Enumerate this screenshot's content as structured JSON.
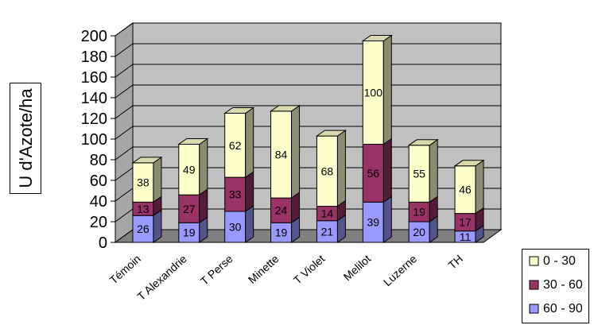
{
  "chart_data": {
    "type": "bar",
    "stacked": true,
    "style": "3d-column",
    "ylabel": "U d'Azote/ha",
    "xlabel": "",
    "ylim": [
      0,
      200
    ],
    "yticks": [
      0,
      20,
      40,
      60,
      80,
      100,
      120,
      140,
      160,
      180,
      200
    ],
    "grid": true,
    "legend_position": "bottom-right",
    "categories": [
      "Témoin",
      "T Alexandrie",
      "T Perse",
      "Minette",
      "T Violet",
      "Melilot",
      "Luzerne",
      "TH"
    ],
    "series": [
      {
        "name": "60 - 90",
        "values": [
          26,
          19,
          30,
          19,
          21,
          39,
          20,
          11
        ],
        "color": "#9999ff"
      },
      {
        "name": "30 - 60",
        "values": [
          13,
          27,
          33,
          24,
          14,
          56,
          19,
          17
        ],
        "color": "#993366"
      },
      {
        "name": "0 - 30",
        "values": [
          38,
          49,
          62,
          84,
          68,
          100,
          55,
          46
        ],
        "color": "#ffffcc"
      }
    ],
    "wall_color": "#c0c0c0",
    "floor_color": "#808080"
  }
}
